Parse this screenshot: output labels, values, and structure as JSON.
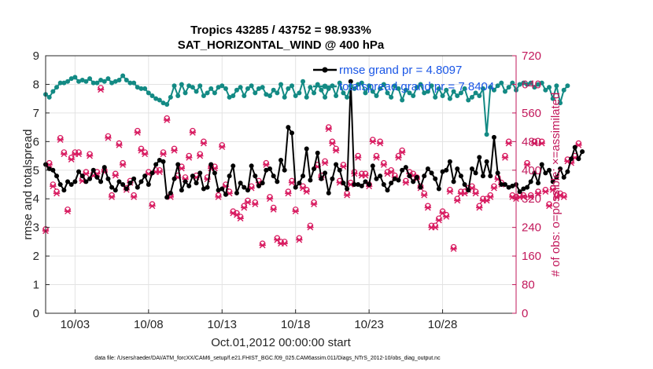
{
  "chart_data": {
    "type": "line",
    "title": "Tropics 43285 / 43752 = 98.933%",
    "subtitle": "SAT_HORIZONTAL_WIND @ 400 hPa",
    "xlabel": "Oct.01,2012 00:00:00 start",
    "ylabel_left": "rmse and totalspread",
    "ylabel_right": "# of obs: o=possible; ×=assimilated",
    "xlim": [
      1,
      33
    ],
    "ylim_left": [
      0,
      9
    ],
    "ylim_right": [
      0,
      720
    ],
    "x_ticks": [
      {
        "x": 3,
        "label": "10/03"
      },
      {
        "x": 8,
        "label": "10/08"
      },
      {
        "x": 13,
        "label": "10/13"
      },
      {
        "x": 18,
        "label": "10/18"
      },
      {
        "x": 23,
        "label": "10/23"
      },
      {
        "x": 28,
        "label": "10/28"
      }
    ],
    "y_ticks_left": [
      "0",
      "1",
      "2",
      "3",
      "4",
      "5",
      "6",
      "7",
      "8",
      "9"
    ],
    "y_ticks_right": [
      "0",
      "80",
      "160",
      "240",
      "320",
      "400",
      "480",
      "560",
      "640",
      "720"
    ],
    "legend": [
      "rmse grand pr = 4.8097",
      "totalspread grand pr = 7.8404"
    ],
    "footnote": "data file: /Users/raeder/DAI/ATM_forcXX/CAM6_setup/f.e21.FHIST_BGC.f09_025.CAM6assim.011/Diags_NTrS_2012-10/obs_diag_output.nc",
    "x_start": 1.0,
    "x_step": 0.25,
    "series": [
      {
        "name": "rmse",
        "axis": "left",
        "color": "#000000",
        "values": [
          5.2,
          5.05,
          5.0,
          4.8,
          4.5,
          4.3,
          4.6,
          4.5,
          4.6,
          4.95,
          4.8,
          4.6,
          4.7,
          5.0,
          4.75,
          4.6,
          5.1,
          4.7,
          4.4,
          4.3,
          4.6,
          4.5,
          4.35,
          4.55,
          4.7,
          4.4,
          4.6,
          4.8,
          4.5,
          4.9,
          5.2,
          5.35,
          5.3,
          4.05,
          4.2,
          4.7,
          5.2,
          4.3,
          4.6,
          4.45,
          4.8,
          4.55,
          4.9,
          4.35,
          4.4,
          5.2,
          4.9,
          4.3,
          4.35,
          4.15,
          4.8,
          5.15,
          4.2,
          4.55,
          4.4,
          4.3,
          5.15,
          4.8,
          4.45,
          4.55,
          5.0,
          5.05,
          4.8,
          4.6,
          5.35,
          5.0,
          6.5,
          6.3,
          4.4,
          4.55,
          4.8,
          5.75,
          4.65,
          5.05,
          5.6,
          4.7,
          4.9,
          4.2,
          4.7,
          5.2,
          5.0,
          4.55,
          4.35,
          8.1,
          4.5,
          4.5,
          4.45,
          4.6,
          4.5,
          5.15,
          4.7,
          4.8,
          4.5,
          4.3,
          4.55,
          4.7,
          4.65,
          5.0,
          5.1,
          4.8,
          4.6,
          4.75,
          4.4,
          4.8,
          5.05,
          4.9,
          4.7,
          4.35,
          4.95,
          5.0,
          5.3,
          4.6,
          5.05,
          4.8,
          4.5,
          4.3,
          5.05,
          4.9,
          5.45,
          4.8,
          5.3,
          4.8,
          6.15,
          4.9,
          4.5,
          4.5,
          4.4,
          4.45,
          4.5,
          4.25,
          4.35,
          4.4,
          4.6,
          4.9,
          4.55,
          5.2,
          4.9,
          5.0,
          4.6,
          4.75,
          5.05,
          4.75,
          4.95,
          5.4,
          5.8,
          5.4,
          5.65
        ]
      },
      {
        "name": "totalspread",
        "axis": "left",
        "color": "#138a84",
        "values": [
          7.65,
          7.55,
          7.75,
          7.9,
          8.05,
          8.05,
          8.1,
          8.2,
          8.25,
          8.1,
          8.15,
          8.1,
          8.2,
          8.05,
          8.05,
          8.15,
          8.1,
          8.2,
          8.05,
          8.1,
          8.15,
          8.3,
          8.15,
          8.05,
          8.05,
          7.9,
          7.85,
          7.85,
          7.7,
          7.6,
          7.5,
          7.45,
          7.35,
          7.3,
          7.55,
          7.95,
          7.6,
          8.0,
          7.7,
          7.95,
          7.9,
          7.75,
          7.95,
          7.6,
          7.7,
          7.85,
          7.7,
          7.9,
          7.95,
          7.85,
          7.55,
          7.6,
          7.8,
          7.9,
          7.6,
          7.85,
          7.95,
          7.7,
          7.85,
          7.9,
          7.65,
          7.6,
          7.8,
          7.7,
          8.0,
          7.55,
          7.85,
          7.95,
          7.6,
          7.7,
          8.1,
          7.55,
          7.9,
          7.7,
          8.0,
          7.8,
          7.55,
          7.85,
          7.95,
          7.6,
          8.05,
          7.7,
          7.55,
          7.95,
          7.85,
          8.0,
          8.05,
          7.7,
          7.95,
          7.75,
          7.6,
          7.85,
          8.0,
          7.7,
          7.55,
          7.95,
          7.85,
          7.45,
          7.8,
          7.7,
          7.6,
          7.9,
          8.0,
          7.7,
          7.75,
          7.95,
          7.55,
          7.85,
          7.6,
          7.8,
          7.5,
          7.75,
          7.6,
          7.7,
          7.85,
          7.45,
          7.55,
          7.7,
          7.6,
          7.85,
          6.25,
          7.9,
          7.8,
          7.95,
          8.05,
          7.75,
          7.9,
          8.05,
          7.8,
          8.0,
          8.05,
          8.0,
          8.05,
          7.9,
          8.0,
          8.05,
          7.8,
          7.9,
          7.5,
          7.95,
          7.35,
          7.8,
          7.95
        ]
      },
      {
        "name": "possible",
        "axis": "right",
        "color": "#d81b60",
        "marker": "o",
        "values": [
          235,
          420,
          360,
          340,
          490,
          450,
          290,
          435,
          450,
          450,
          375,
          395,
          445,
          390,
          395,
          630,
          400,
          495,
          330,
          390,
          475,
          420,
          350,
          370,
          330,
          510,
          460,
          450,
          395,
          305,
          400,
          400,
          450,
          545,
          330,
          460,
          385,
          410,
          380,
          440,
          510,
          385,
          445,
          480,
          380,
          410,
          410,
          330,
          470,
          360,
          340,
          285,
          280,
          270,
          300,
          315,
          355,
          310,
          370,
          195,
          420,
          325,
          295,
          210,
          200,
          200,
          340,
          370,
          290,
          210,
          355,
          345,
          245,
          310,
          415,
          385,
          425,
          520,
          480,
          460,
          370,
          415,
          335,
          365,
          395,
          440,
          390,
          390,
          360,
          485,
          440,
          480,
          420,
          395,
          400,
          385,
          440,
          455,
          370,
          395,
          390,
          380,
          355,
          335,
          300,
          245,
          245,
          265,
          285,
          275,
          345,
          185,
          320,
          340,
          340,
          350,
          355,
          340,
          300,
          320,
          320,
          330,
          355,
          380,
          365,
          440,
          480,
          330,
          325,
          330,
          330,
          420,
          330,
          480,
          340,
          480,
          345,
          305,
          350,
          330,
          335,
          330,
          430,
          425,
          440,
          475
        ]
      },
      {
        "name": "assimilated",
        "axis": "right",
        "color": "#d81b60",
        "marker": "x",
        "values": [
          230,
          415,
          355,
          335,
          485,
          445,
          285,
          430,
          445,
          445,
          370,
          390,
          440,
          385,
          390,
          625,
          395,
          490,
          325,
          385,
          470,
          415,
          345,
          365,
          325,
          505,
          455,
          445,
          390,
          300,
          395,
          395,
          445,
          540,
          325,
          455,
          380,
          405,
          375,
          435,
          505,
          380,
          440,
          475,
          375,
          405,
          405,
          325,
          465,
          355,
          335,
          280,
          275,
          265,
          295,
          310,
          350,
          305,
          365,
          190,
          415,
          320,
          290,
          205,
          195,
          195,
          335,
          365,
          285,
          205,
          350,
          340,
          240,
          305,
          410,
          380,
          420,
          515,
          475,
          455,
          365,
          410,
          330,
          360,
          390,
          435,
          385,
          385,
          355,
          480,
          435,
          475,
          415,
          390,
          395,
          380,
          435,
          450,
          365,
          390,
          385,
          375,
          350,
          330,
          295,
          240,
          240,
          260,
          280,
          270,
          340,
          180,
          315,
          335,
          335,
          345,
          350,
          335,
          295,
          315,
          315,
          325,
          350,
          375,
          360,
          435,
          475,
          325,
          320,
          325,
          325,
          415,
          325,
          475,
          335,
          475,
          340,
          300,
          345,
          325,
          330,
          325,
          425,
          420,
          435,
          470
        ]
      }
    ]
  }
}
